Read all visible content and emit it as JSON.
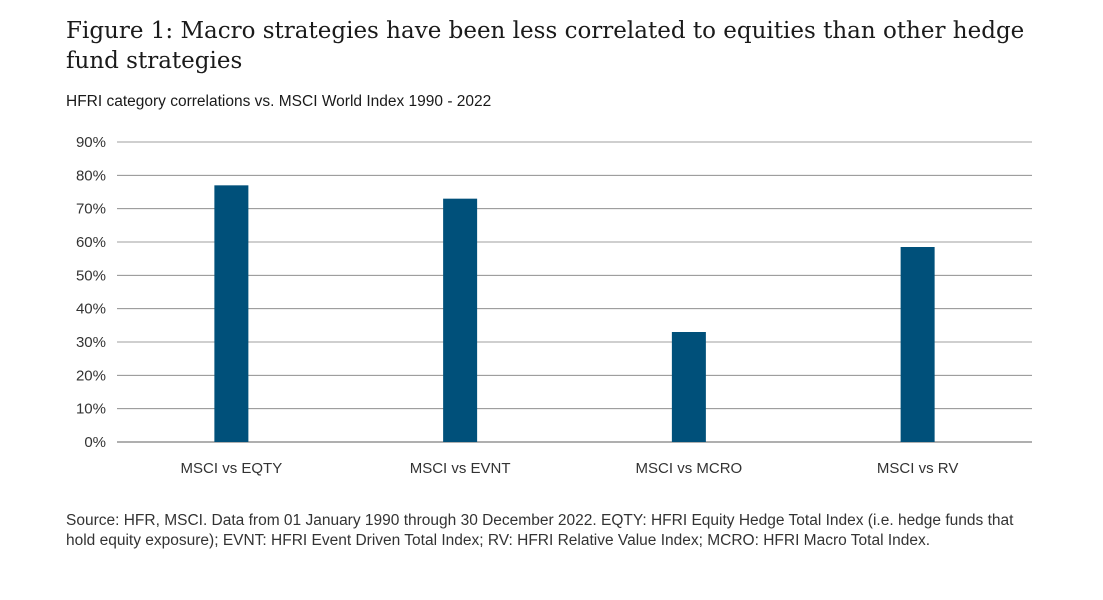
{
  "title": "Figure 1: Macro strategies have been less correlated to equities than other hedge fund strategies",
  "subtitle": "HFRI category correlations vs. MSCI World Index 1990 - 2022",
  "source": "Source: HFR, MSCI. Data from 01 January 1990 through 30 December 2022. EQTY: HFRI Equity Hedge Total Index (i.e. hedge funds that hold equity exposure); EVNT: HFRI Event Driven Total Index; RV: HFRI Relative Value Index; MCRO: HFRI Macro Total Index.",
  "colors": {
    "bar": "#00507a",
    "grid": "#7f7f7f"
  },
  "chart_data": {
    "type": "bar",
    "title": "HFRI category correlations vs. MSCI World Index 1990 - 2022",
    "categories": [
      "MSCI vs EQTY",
      "MSCI vs EVNT",
      "MSCI vs MCRO",
      "MSCI vs RV"
    ],
    "values": [
      77,
      73,
      33,
      58.5
    ],
    "xlabel": "",
    "ylabel": "",
    "ylim": [
      0,
      90
    ],
    "yticks": [
      0,
      10,
      20,
      30,
      40,
      50,
      60,
      70,
      80,
      90
    ],
    "ytick_labels": [
      "0%",
      "10%",
      "20%",
      "30%",
      "40%",
      "50%",
      "60%",
      "70%",
      "80%",
      "90%"
    ],
    "grid": true,
    "legend": "none"
  }
}
